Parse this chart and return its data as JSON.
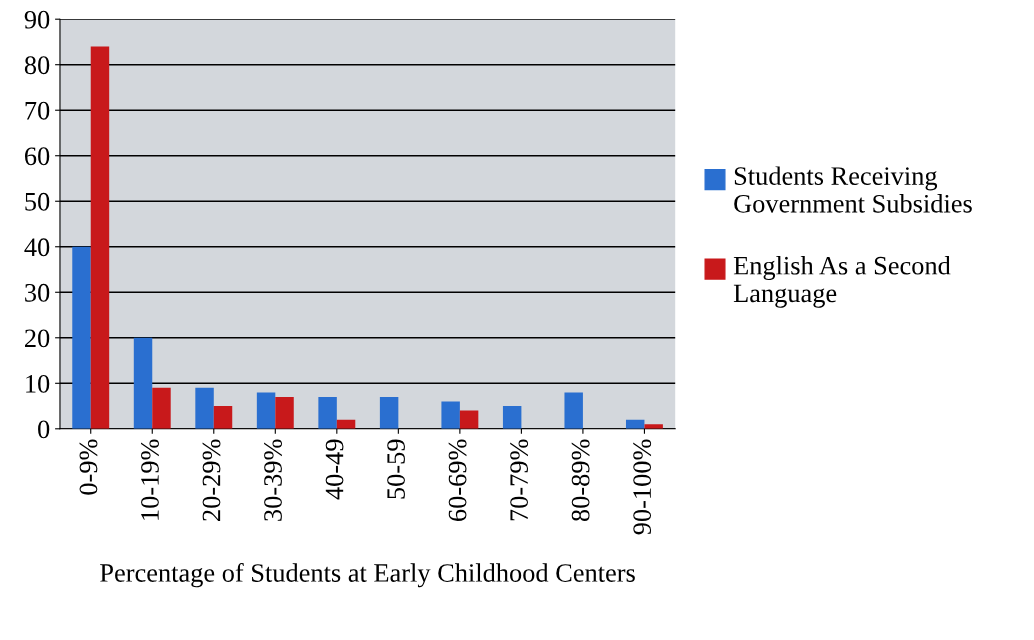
{
  "chart_data": {
    "type": "bar",
    "xlabel": "Percentage of Students at Early Childhood Centers",
    "categories": [
      "0-9%",
      "10-19%",
      "20-29%",
      "30-39%",
      "40-49",
      "50-59",
      "60-69%",
      "70-79%",
      "80-89%",
      "90-100%"
    ],
    "series": [
      {
        "name": "Students Receiving Government Subsidies",
        "color": "#2a6fd0",
        "values": [
          40,
          20,
          9,
          8,
          7,
          7,
          6,
          5,
          8,
          2
        ]
      },
      {
        "name": "English As a Second Language",
        "color": "#c8191b",
        "values": [
          84,
          9,
          5,
          7,
          2,
          0,
          4,
          0,
          0,
          1
        ]
      }
    ],
    "ylim": [
      0,
      90
    ],
    "yticks": [
      0,
      10,
      20,
      30,
      40,
      50,
      60,
      70,
      80,
      90
    ],
    "grid": "y",
    "legend": "right"
  }
}
